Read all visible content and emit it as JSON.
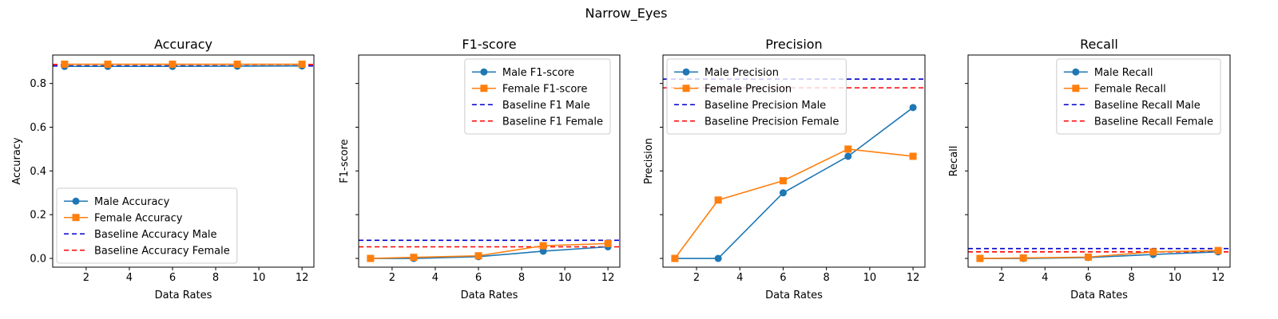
{
  "figure_title": "Narrow_Eyes",
  "colors": {
    "male": "#1f77b4",
    "female": "#ff7f0e",
    "baseline_male": "#0000cc",
    "baseline_female": "#ff0000"
  },
  "chart_data": [
    {
      "type": "line",
      "title": "Accuracy",
      "xlabel": "Data Rates",
      "ylabel": "Accuracy",
      "x": [
        1,
        3,
        6,
        9,
        12
      ],
      "xlim": [
        0.45,
        12.55
      ],
      "ylim": [
        -0.04,
        0.93
      ],
      "xticks": [
        2,
        4,
        6,
        8,
        10,
        12
      ],
      "yticks": [
        0.0,
        0.2,
        0.4,
        0.6,
        0.8
      ],
      "ytick_labels": [
        "0.0",
        "0.2",
        "0.4",
        "0.6",
        "0.8"
      ],
      "legend_loc": "lower-left",
      "series": [
        {
          "name": "Male Accuracy",
          "marker": "circle",
          "values": [
            0.878,
            0.878,
            0.878,
            0.879,
            0.88
          ]
        },
        {
          "name": "Female Accuracy",
          "marker": "square",
          "values": [
            0.888,
            0.888,
            0.888,
            0.888,
            0.888
          ]
        }
      ],
      "baselines": [
        {
          "name": "Baseline Accuracy Male",
          "value": 0.88,
          "role": "male"
        },
        {
          "name": "Baseline Accuracy Female",
          "value": 0.887,
          "role": "female"
        }
      ]
    },
    {
      "type": "line",
      "title": "F1-score",
      "xlabel": "Data Rates",
      "ylabel": "F1-score",
      "x": [
        1,
        3,
        6,
        9,
        12
      ],
      "xlim": [
        0.45,
        12.55
      ],
      "ylim": [
        -0.04,
        0.93
      ],
      "xticks": [
        2,
        4,
        6,
        8,
        10,
        12
      ],
      "yticks": [
        0.0,
        0.2,
        0.4,
        0.6,
        0.8
      ],
      "ytick_labels": [
        "",
        "",
        "",
        "",
        ""
      ],
      "legend_loc": "upper-right",
      "series": [
        {
          "name": "Male F1-score",
          "marker": "circle",
          "values": [
            0.0,
            0.0,
            0.008,
            0.033,
            0.053
          ]
        },
        {
          "name": "Female F1-score",
          "marker": "square",
          "values": [
            0.0,
            0.005,
            0.012,
            0.058,
            0.068
          ]
        }
      ],
      "baselines": [
        {
          "name": "Baseline F1 Male",
          "value": 0.083,
          "role": "male"
        },
        {
          "name": "Baseline F1 Female",
          "value": 0.053,
          "role": "female"
        }
      ]
    },
    {
      "type": "line",
      "title": "Precision",
      "xlabel": "Data Rates",
      "ylabel": "Precision",
      "x": [
        1,
        3,
        6,
        9,
        12
      ],
      "xlim": [
        0.45,
        12.55
      ],
      "ylim": [
        -0.04,
        0.93
      ],
      "xticks": [
        2,
        4,
        6,
        8,
        10,
        12
      ],
      "yticks": [
        0.0,
        0.2,
        0.4,
        0.6,
        0.8
      ],
      "ytick_labels": [
        "",
        "",
        "",
        "",
        ""
      ],
      "legend_loc": "upper-left",
      "series": [
        {
          "name": "Male Precision",
          "marker": "circle",
          "values": [
            0.0,
            0.0,
            0.3,
            0.467,
            0.69
          ]
        },
        {
          "name": "Female Precision",
          "marker": "square",
          "values": [
            0.0,
            0.267,
            0.355,
            0.5,
            0.467
          ]
        }
      ],
      "baselines": [
        {
          "name": "Baseline Precision Male",
          "value": 0.82,
          "role": "male"
        },
        {
          "name": "Baseline Precision Female",
          "value": 0.78,
          "role": "female"
        }
      ]
    },
    {
      "type": "line",
      "title": "Recall",
      "xlabel": "Data Rates",
      "ylabel": "Recall",
      "x": [
        1,
        3,
        6,
        9,
        12
      ],
      "xlim": [
        0.45,
        12.55
      ],
      "ylim": [
        -0.04,
        0.93
      ],
      "xticks": [
        2,
        4,
        6,
        8,
        10,
        12
      ],
      "yticks": [
        0.0,
        0.2,
        0.4,
        0.6,
        0.8
      ],
      "ytick_labels": [
        "",
        "",
        "",
        "",
        ""
      ],
      "legend_loc": "upper-right",
      "series": [
        {
          "name": "Male Recall",
          "marker": "circle",
          "values": [
            0.0,
            0.0,
            0.004,
            0.018,
            0.03
          ]
        },
        {
          "name": "Female Recall",
          "marker": "square",
          "values": [
            0.0,
            0.002,
            0.006,
            0.03,
            0.036
          ]
        }
      ],
      "baselines": [
        {
          "name": "Baseline Recall Male",
          "value": 0.045,
          "role": "male"
        },
        {
          "name": "Baseline Recall Female",
          "value": 0.03,
          "role": "female"
        }
      ]
    }
  ]
}
